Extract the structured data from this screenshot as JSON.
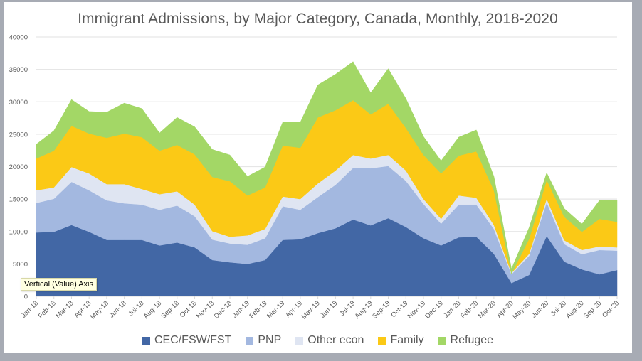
{
  "window": {
    "tooltip": "Vertical (Value) Axis"
  },
  "chart_data": {
    "type": "area",
    "stacked": true,
    "title": "Immigrant Admissions, by Major Category, Canada, Monthly, 2018-2020",
    "xlabel": "",
    "ylabel": "",
    "ylim": [
      0,
      40000
    ],
    "yticks": [
      0,
      5000,
      10000,
      15000,
      20000,
      25000,
      30000,
      35000,
      40000
    ],
    "grid": true,
    "legend_position": "bottom",
    "categories": [
      "Jan-18",
      "Feb-18",
      "Mar-18",
      "Apr-18",
      "May-18",
      "Jun-18",
      "Jul-18",
      "Aug-18",
      "Sep-18",
      "Oct-18",
      "Nov-18",
      "Dec-18",
      "Jan-19",
      "Feb-19",
      "Mar-19",
      "Apr-19",
      "May-19",
      "Jun-19",
      "Jul-19",
      "Aug-19",
      "Sep-19",
      "Oct-19",
      "Nov-19",
      "Dec-19",
      "Jan-20",
      "Feb-20",
      "Mar-20",
      "Apr-20",
      "May-20",
      "Jun-20",
      "Jul-20",
      "Aug-20",
      "Sep-20",
      "Oct-20"
    ],
    "series": [
      {
        "name": "CEC/FSW/FST",
        "color": "#4267a5",
        "values": [
          9850,
          9950,
          11000,
          9950,
          8700,
          8700,
          8700,
          7850,
          8300,
          7550,
          5600,
          5250,
          5000,
          5600,
          8700,
          8800,
          9750,
          10500,
          11850,
          10950,
          12050,
          10700,
          8950,
          7850,
          9100,
          9200,
          6550,
          2050,
          3300,
          9300,
          5350,
          4150,
          3400,
          4050
        ]
      },
      {
        "name": "PNP",
        "color": "#a3b8e0",
        "values": [
          4550,
          5100,
          6650,
          6400,
          6100,
          5650,
          5450,
          5500,
          5700,
          4800,
          3150,
          2900,
          2950,
          3350,
          5200,
          4550,
          5550,
          6700,
          7950,
          8800,
          8050,
          7100,
          5300,
          3350,
          5050,
          4950,
          3850,
          1350,
          2950,
          5200,
          2700,
          2350,
          3750,
          3000
        ]
      },
      {
        "name": "Other econ",
        "color": "#dfe5f2",
        "values": [
          1950,
          1750,
          2300,
          2600,
          2500,
          2950,
          2400,
          2400,
          2200,
          1800,
          1300,
          1050,
          1450,
          1450,
          1500,
          1650,
          2100,
          2200,
          2000,
          1500,
          1700,
          1600,
          750,
          750,
          1400,
          1050,
          600,
          200,
          300,
          550,
          600,
          650,
          550,
          500
        ]
      },
      {
        "name": "Family",
        "color": "#fbc916",
        "values": [
          4900,
          5650,
          6350,
          6150,
          7150,
          7800,
          8000,
          6700,
          7150,
          7750,
          8350,
          8550,
          6150,
          6400,
          7850,
          7900,
          10200,
          9300,
          8450,
          6800,
          7900,
          6550,
          6800,
          7000,
          6150,
          7150,
          5350,
          -100,
          2300,
          2900,
          3600,
          2800,
          4250,
          3950
        ]
      },
      {
        "name": "Refugee",
        "color": "#a3d766",
        "values": [
          2200,
          3100,
          4050,
          3400,
          3950,
          4700,
          4400,
          2750,
          4250,
          4250,
          4250,
          4050,
          2950,
          3150,
          3600,
          3950,
          5000,
          5550,
          5950,
          3350,
          5400,
          4550,
          2850,
          1950,
          2850,
          3300,
          2150,
          750,
          1750,
          1100,
          1300,
          1200,
          2850,
          3300
        ]
      }
    ]
  }
}
